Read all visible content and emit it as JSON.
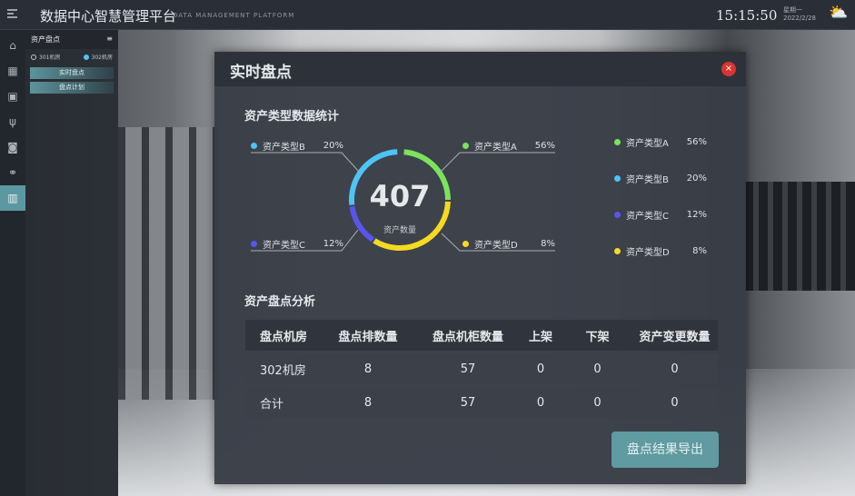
{
  "header": {
    "title": "数据中心智慧管理平台",
    "subtitle": "DATA MANAGEMENT PLATFORM",
    "time": "15:15:50",
    "weekday": "星期一",
    "date": "2022/2/28"
  },
  "sidebar": {
    "title": "资产盘点",
    "rooms": [
      {
        "label": "301机房",
        "selected": false
      },
      {
        "label": "302机房",
        "selected": true
      }
    ],
    "buttons": [
      "实时盘点",
      "盘点计划"
    ]
  },
  "modal": {
    "title": "实时盘点",
    "close": "×",
    "stats_title": "资产类型数据统计",
    "total": "407",
    "total_label": "资产数量",
    "types": [
      {
        "name": "资产类型A",
        "pct": "56%",
        "value": 56,
        "color": "#7be35c"
      },
      {
        "name": "资产类型B",
        "pct": "20%",
        "value": 20,
        "color": "#4ec3f5"
      },
      {
        "name": "资产类型C",
        "pct": "12%",
        "value": 12,
        "color": "#5a55ea"
      },
      {
        "name": "资产类型D",
        "pct": "8%",
        "value": 8,
        "color": "#f5d923"
      }
    ],
    "analysis_title": "资产盘点分析",
    "table": {
      "headers": [
        "盘点机房",
        "盘点排数量",
        "盘点机柜数量",
        "上架",
        "下架",
        "资产变更数量"
      ],
      "rows": [
        [
          "302机房",
          "8",
          "57",
          "0",
          "0",
          "0"
        ],
        [
          "合计",
          "8",
          "57",
          "0",
          "0",
          "0"
        ]
      ]
    },
    "export_label": "盘点结果导出"
  }
}
